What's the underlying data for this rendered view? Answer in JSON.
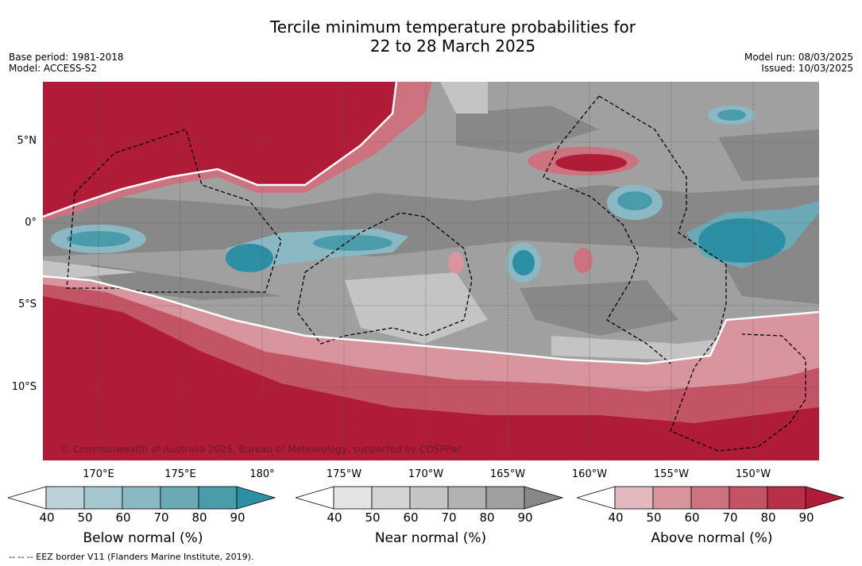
{
  "title_line1": "Tercile minimum temperature probabilities for",
  "title_line2": "22 to 28 March 2025",
  "meta_left": [
    "Base period: 1981-2018",
    "Model: ACCESS-S2"
  ],
  "meta_right": [
    "Model run: 08/03/2025",
    "Issued: 10/03/2025"
  ],
  "lat_labels": [
    "5°N",
    "0°",
    "5°S",
    "10°S"
  ],
  "lon_labels": [
    "170°E",
    "175°E",
    "180°",
    "175°W",
    "170°W",
    "165°W",
    "160°W",
    "155°W",
    "150°W"
  ],
  "copyright": "© Commonwealth of Australia 2025, Bureau of Meteorology, supported by COSPPac",
  "colorbars": [
    {
      "title": "Below normal (%)",
      "ticks": [
        "40",
        "50",
        "60",
        "70",
        "80",
        "90"
      ],
      "colors": [
        "#ffffff",
        "#bcd2d8",
        "#a5c6cd",
        "#8ab8c3",
        "#6aa9b5",
        "#4a9cab",
        "#2d8fa3"
      ]
    },
    {
      "title": "Near normal (%)",
      "ticks": [
        "40",
        "50",
        "60",
        "70",
        "80",
        "90"
      ],
      "colors": [
        "#ffffff",
        "#e4e4e4",
        "#d4d4d4",
        "#c4c4c4",
        "#b2b2b2",
        "#a0a0a0",
        "#888888"
      ]
    },
    {
      "title": "Above normal (%)",
      "ticks": [
        "40",
        "50",
        "60",
        "70",
        "80",
        "90"
      ],
      "colors": [
        "#ffffff",
        "#e3b9bf",
        "#d8959e",
        "#cc737f",
        "#c35465",
        "#b83048",
        "#b01c38"
      ]
    }
  ],
  "eez_note": "--  --  -- EEZ border V11 (Flanders Marine Institute, 2019)."
}
